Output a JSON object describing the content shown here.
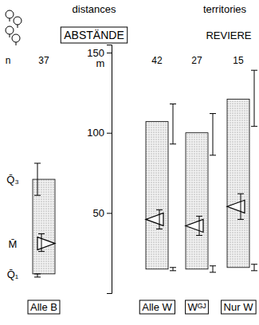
{
  "chart_data": {
    "type": "box",
    "title": "ABSTÄNDE",
    "subtitle": "distances",
    "annotations": [
      "territories",
      "REVIERE",
      "n"
    ],
    "y_label": "m",
    "categories": [
      "Alle B",
      "Alle W",
      "Wᴳᴶ",
      "Nur W"
    ],
    "n": [
      37,
      42,
      27,
      15
    ],
    "q1": [
      12,
      15,
      15,
      16
    ],
    "median": [
      31,
      46,
      42,
      54
    ],
    "q3": [
      71,
      107,
      100,
      121
    ],
    "q1_ci": [
      [
        10,
        12
      ],
      [
        14,
        16
      ],
      [
        13,
        17
      ],
      [
        14,
        18
      ]
    ],
    "median_ci": [
      [
        26,
        37
      ],
      [
        40,
        52
      ],
      [
        36,
        48
      ],
      [
        46,
        62
      ]
    ],
    "q3_ci": [
      [
        61,
        81
      ],
      [
        93,
        118
      ],
      [
        86,
        112
      ],
      [
        104,
        139
      ]
    ],
    "stat_labels": [
      "Q̄₃",
      "M̄",
      "Q̄₁"
    ],
    "ylim": [
      0,
      155
    ],
    "yticks": [
      50,
      100,
      150
    ]
  }
}
